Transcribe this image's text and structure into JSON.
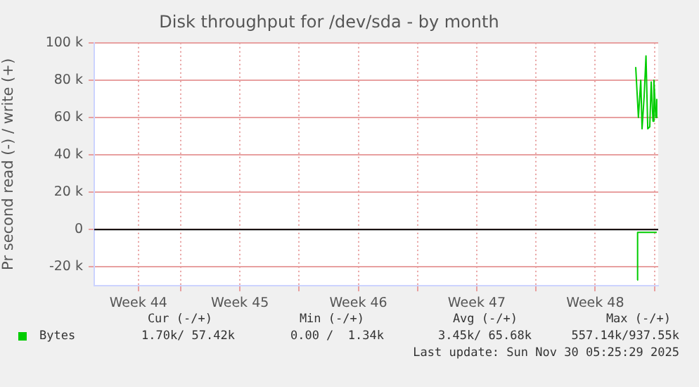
{
  "chart_data": {
    "type": "line",
    "title": "Disk throughput for /dev/sda - by month",
    "ylabel": "Pr second read (-) / write (+)",
    "xlim": [
      "2025-10-27T21:20",
      "2025-11-30T05:25"
    ],
    "xticks": [
      {
        "value": "2025-10-30T12:00",
        "label": "Week 44"
      },
      {
        "value": "2025-11-02",
        "label": null
      },
      {
        "value": "2025-11-05T12:00",
        "label": "Week 45"
      },
      {
        "value": "2025-11-09",
        "label": null
      },
      {
        "value": "2025-11-12T12:00",
        "label": "Week 46"
      },
      {
        "value": "2025-11-16",
        "label": null
      },
      {
        "value": "2025-11-19T12:00",
        "label": "Week 47"
      },
      {
        "value": "2025-11-23",
        "label": null
      },
      {
        "value": "2025-11-26T12:00",
        "label": "Week 48"
      },
      {
        "value": "2025-11-30",
        "label": null
      }
    ],
    "ylim": [
      -30000,
      100000
    ],
    "yticks": [
      {
        "value": -20000,
        "label": "-20 k"
      },
      0,
      {
        "value": 20000,
        "label": "20 k"
      },
      {
        "value": 40000,
        "label": "40 k"
      },
      {
        "value": 60000,
        "label": "60 k"
      },
      {
        "value": 80000,
        "label": "80 k"
      },
      {
        "value": 100000,
        "label": "100 k"
      }
    ],
    "grid": true,
    "legend": "bottom left",
    "marker": "none",
    "ref_lines": [
      {
        "axis": "y",
        "value": 0,
        "color": "#000000"
      }
    ],
    "series": [
      {
        "name": "Bytes",
        "color": "#00cc00",
        "x": [
          "2025-11-28T21:30",
          "2025-11-29T01:20",
          "2025-11-29T04:40",
          "2025-11-29T06:30",
          "2025-11-29T09:25",
          "2025-11-29T12:05",
          "2025-11-29T14:35",
          "2025-11-29T17:25",
          "2025-11-29T19:30",
          "2025-11-29T22:00",
          "2025-11-29T23:20",
          "2025-11-30T02:00",
          "2025-11-30T03:20"
        ],
        "values": [
          87000,
          60000,
          80000,
          54000,
          71000,
          93000,
          54000,
          55000,
          79000,
          58000,
          80000,
          60000,
          70000
        ]
      },
      {
        "color": "#00cc00",
        "x": [
          "2025-11-28T23:40",
          "2025-11-29T00:10",
          "2025-11-30T03:20"
        ],
        "values": [
          -27000,
          -1500,
          -1500
        ]
      }
    ],
    "annotations": [
      "Cur (-/+)",
      "Min (-/+)",
      "Avg (-/+)",
      "Max (-/+)",
      "1.70k/ 57.42k",
      "0.00 /  1.34k",
      "3.45k/ 65.68k",
      "557.14k/937.55k",
      "Last update: Sun Nov 30 05:25:29 2025"
    ]
  }
}
